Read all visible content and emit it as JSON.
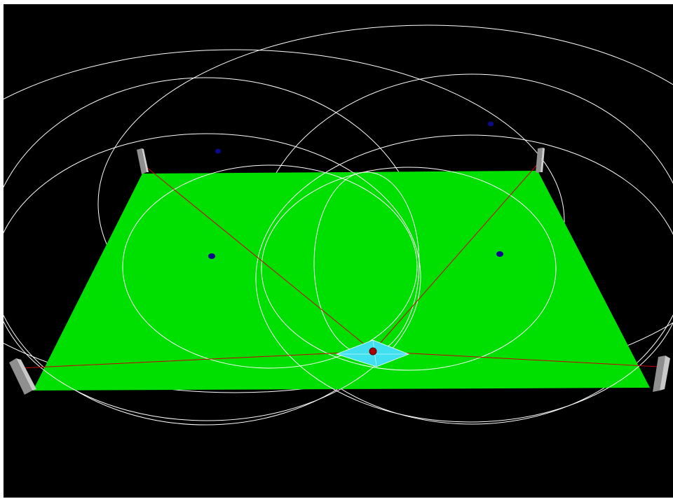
{
  "scene": {
    "background_color": "#000000",
    "border_color": "#ffffff",
    "field": {
      "color": "#00e000",
      "shape": "quadrilateral"
    },
    "anchors": {
      "count": 4,
      "color": "#8f8f8f",
      "items": [
        {
          "name": "anchor-top-left"
        },
        {
          "name": "anchor-top-right"
        },
        {
          "name": "anchor-bottom-left"
        },
        {
          "name": "anchor-bottom-right"
        }
      ]
    },
    "tag": {
      "color": "#aa0000",
      "highlight_color": "#40e0f0"
    },
    "range_circles": {
      "count": 6,
      "color": "#ffffff"
    },
    "range_lines": {
      "count": 4,
      "color": "#cc0000"
    },
    "markers": {
      "count": 4,
      "color": "#0a0a8a"
    }
  }
}
